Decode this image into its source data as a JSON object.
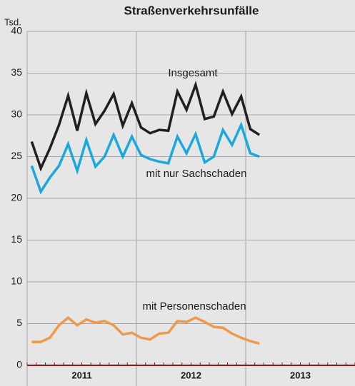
{
  "chart_data": {
    "type": "line",
    "title": "Straßenverkehrsunfälle",
    "y_unit": "Tsd.",
    "categories": [
      null,
      null,
      null,
      null,
      null,
      null,
      null,
      null,
      null,
      null,
      null,
      null,
      null,
      null,
      null,
      null,
      null,
      null,
      null,
      null,
      null,
      null,
      null,
      null,
      null,
      null
    ],
    "year_labels": [
      "2011",
      "2012",
      "2013"
    ],
    "series": [
      {
        "name": "Insgesamt",
        "color": "#231f20",
        "values": [
          26.8,
          23.6,
          26,
          28.8,
          32.3,
          28.1,
          32.6,
          28.9,
          30.5,
          32.5,
          28.7,
          31.4,
          28.5,
          27.8,
          28.2,
          28.1,
          32.8,
          30.6,
          33.6,
          29.5,
          29.8,
          32.8,
          30.1,
          32.2,
          28.3,
          27.6
        ]
      },
      {
        "name": "mit nur Sachschaden",
        "color": "#1ba9dd",
        "values": [
          23.9,
          20.8,
          22.5,
          23.9,
          26.5,
          23.3,
          27.0,
          23.8,
          25.0,
          27.6,
          25.0,
          27.4,
          25.2,
          24.7,
          24.4,
          24.2,
          27.4,
          25.4,
          27.7,
          24.3,
          25.0,
          28.2,
          26.4,
          28.8,
          25.4,
          25.0
        ]
      },
      {
        "name": "mit Personenschaden",
        "color": "#f0994a",
        "values": [
          2.8,
          2.8,
          3.3,
          4.8,
          5.7,
          4.8,
          5.5,
          5.1,
          5.3,
          4.8,
          3.7,
          3.9,
          3.3,
          3.1,
          3.8,
          3.9,
          5.3,
          5.2,
          5.7,
          5.2,
          4.6,
          4.5,
          3.8,
          3.3,
          2.9,
          2.6
        ]
      }
    ],
    "ylim": [
      0,
      40
    ],
    "yticks": [
      0,
      5,
      10,
      15,
      20,
      25,
      30,
      35,
      40
    ],
    "grid": true
  }
}
